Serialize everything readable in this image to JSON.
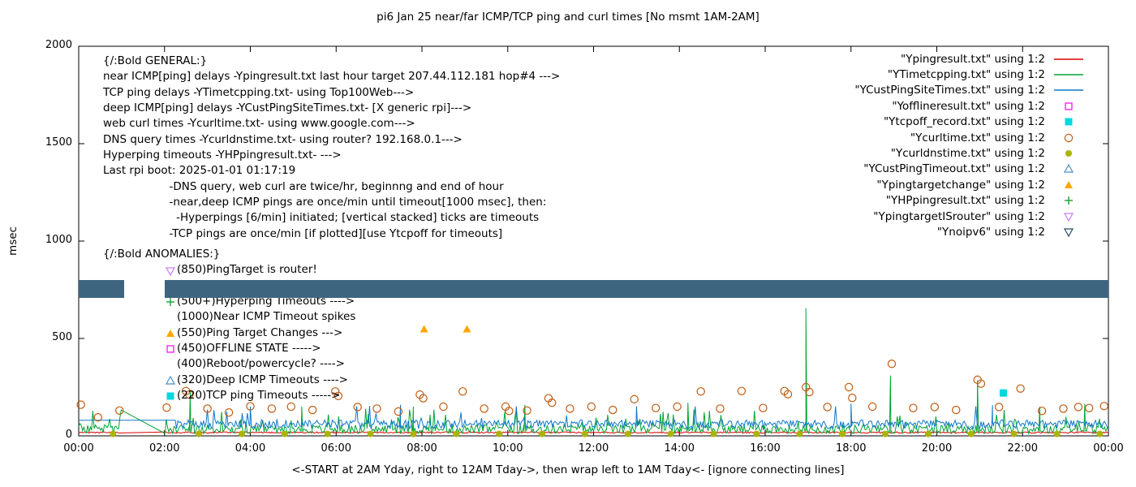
{
  "chart_data": {
    "type": "line",
    "title": "pi6 Jan 25  near/far ICMP/TCP ping and curl times [No msmt 1AM-2AM]",
    "xlabel": "<-START at 2AM Yday, right to 12AM Tday->, then wrap left to 1AM Tday<- [ignore connecting lines]",
    "ylabel": "msec",
    "ylim": [
      0,
      2000
    ],
    "xlim_hours": [
      0,
      24
    ],
    "x_ticks": [
      "00:00",
      "02:00",
      "04:00",
      "06:00",
      "08:00",
      "10:00",
      "12:00",
      "14:00",
      "16:00",
      "18:00",
      "20:00",
      "22:00",
      "00:00"
    ],
    "y_ticks": [
      0,
      500,
      1000,
      1500,
      2000
    ],
    "grid": "off",
    "legend_position": "top-right",
    "no_measurement_window": [
      1,
      2
    ],
    "series": [
      {
        "id": "Ypingresult",
        "label": "\"Ypingresult.txt\" using 1:2",
        "color": "#dd0000",
        "kind": "noisy-line",
        "base": 16,
        "jitter": 7,
        "seed": 11,
        "spikes": []
      },
      {
        "id": "YTimetcpping",
        "label": "\"YTimetcpping.txt\" using 1:2",
        "color": "#00a332",
        "kind": "noisy-line",
        "base": 25,
        "jitter": 45,
        "spike_prob": 0.1,
        "spike_amp": 100,
        "seed": 23,
        "spikes": [
          [
            2.6,
            235
          ],
          [
            5.2,
            150
          ],
          [
            7.8,
            150
          ],
          [
            10.4,
            160
          ],
          [
            14.2,
            170
          ],
          [
            16.95,
            655
          ],
          [
            18.92,
            310
          ],
          [
            20.95,
            285
          ],
          [
            22.4,
            150
          ],
          [
            23.45,
            165
          ]
        ]
      },
      {
        "id": "YCustPingSiteTimes",
        "label": "\"YCustPingSiteTimes.txt\" using 1:2",
        "color": "#1077c9",
        "kind": "noisy-line",
        "base": 50,
        "jitter": 45,
        "spike_prob": 0.06,
        "spike_amp": 80,
        "seed": 37,
        "flat_until": 2.25,
        "flat_value": 80,
        "spikes": [
          [
            4.0,
            150
          ],
          [
            7.5,
            160
          ],
          [
            13.0,
            152
          ],
          [
            18.0,
            165
          ],
          [
            21.3,
            158
          ]
        ]
      },
      {
        "id": "Yofflineresult",
        "label": "\"Yofflineresult.txt\" using 1:2",
        "color": "#ff00ff",
        "kind": "points",
        "marker": "square-open",
        "points": []
      },
      {
        "id": "Ytcpoff_record",
        "label": "\"Ytcpoff_record.txt\" using 1:2",
        "color": "#00d8e0",
        "kind": "points",
        "marker": "square-filled",
        "points": [
          [
            21.55,
            220
          ]
        ]
      },
      {
        "id": "Ycurltime",
        "label": "\"Ycurltime.txt\" using 1:2",
        "color": "#c05a10",
        "kind": "points",
        "marker": "circle-open",
        "points": [
          [
            0.05,
            160
          ],
          [
            0.45,
            95
          ],
          [
            0.95,
            130
          ],
          [
            2.05,
            145
          ],
          [
            2.5,
            230
          ],
          [
            2.58,
            212
          ],
          [
            3.0,
            140
          ],
          [
            3.5,
            120
          ],
          [
            4.0,
            152
          ],
          [
            4.5,
            140
          ],
          [
            4.95,
            150
          ],
          [
            5.45,
            133
          ],
          [
            5.98,
            228
          ],
          [
            6.05,
            205
          ],
          [
            6.5,
            148
          ],
          [
            6.95,
            140
          ],
          [
            7.45,
            125
          ],
          [
            7.95,
            212
          ],
          [
            8.03,
            193
          ],
          [
            8.5,
            150
          ],
          [
            8.95,
            228
          ],
          [
            9.45,
            140
          ],
          [
            9.95,
            150
          ],
          [
            10.03,
            128
          ],
          [
            10.45,
            130
          ],
          [
            10.95,
            193
          ],
          [
            11.03,
            170
          ],
          [
            11.45,
            140
          ],
          [
            11.95,
            150
          ],
          [
            12.45,
            133
          ],
          [
            12.95,
            188
          ],
          [
            13.45,
            143
          ],
          [
            13.95,
            150
          ],
          [
            14.5,
            228
          ],
          [
            14.95,
            140
          ],
          [
            15.45,
            230
          ],
          [
            15.95,
            143
          ],
          [
            16.45,
            230
          ],
          [
            16.53,
            214
          ],
          [
            16.95,
            250
          ],
          [
            17.03,
            225
          ],
          [
            17.45,
            148
          ],
          [
            17.95,
            250
          ],
          [
            18.03,
            195
          ],
          [
            18.5,
            150
          ],
          [
            18.95,
            370
          ],
          [
            19.45,
            143
          ],
          [
            19.95,
            148
          ],
          [
            20.45,
            133
          ],
          [
            20.95,
            288
          ],
          [
            21.03,
            268
          ],
          [
            21.45,
            148
          ],
          [
            21.95,
            243
          ],
          [
            22.45,
            128
          ],
          [
            22.95,
            140
          ],
          [
            23.3,
            148
          ],
          [
            23.55,
            143
          ],
          [
            23.9,
            153
          ]
        ]
      },
      {
        "id": "Ycurldnstime",
        "label": "\"Ycurldnstime.txt\" using 1:2",
        "color": "#aab404",
        "kind": "points",
        "marker": "circle-filled",
        "points": [
          [
            0.8,
            10
          ],
          [
            2.8,
            10
          ],
          [
            3.8,
            10
          ],
          [
            4.8,
            10
          ],
          [
            5.8,
            10
          ],
          [
            6.8,
            10
          ],
          [
            7.8,
            10
          ],
          [
            8.8,
            10
          ],
          [
            9.8,
            10
          ],
          [
            10.8,
            10
          ],
          [
            11.8,
            10
          ],
          [
            12.8,
            10
          ],
          [
            13.8,
            10
          ],
          [
            14.8,
            10
          ],
          [
            15.8,
            10
          ],
          [
            16.8,
            10
          ],
          [
            17.8,
            10
          ],
          [
            18.8,
            10
          ],
          [
            19.8,
            10
          ],
          [
            20.8,
            10
          ],
          [
            21.8,
            10
          ],
          [
            22.8,
            10
          ],
          [
            23.8,
            10
          ]
        ]
      },
      {
        "id": "YCustPingTimeout",
        "label": "\"YCustPingTimeout.txt\" using 1:2",
        "color": "#4b8fc4",
        "kind": "points",
        "marker": "triangle-up-open",
        "points": []
      },
      {
        "id": "Ypingtargetchange",
        "label": "\"Ypingtargetchange\" using 1:2",
        "color": "#ffa500",
        "kind": "points",
        "marker": "triangle-up-filled",
        "points": [
          [
            8.05,
            548
          ],
          [
            9.05,
            548
          ]
        ]
      },
      {
        "id": "YHPpingresult",
        "label": "\"YHPpingresult.txt\" using 1:2",
        "color": "#009e20",
        "kind": "points",
        "marker": "plus",
        "points": []
      },
      {
        "id": "YpingtargetISrouter",
        "label": "\"YpingtargetISrouter\" using 1:2",
        "color": "#cb7bf0",
        "kind": "points",
        "marker": "triangle-down-open",
        "points": []
      },
      {
        "id": "Ynoipv6",
        "label": "\"Ynoipv6\" using 1:2",
        "color": "#234a66",
        "kind": "band",
        "marker": "triangle-down-open",
        "band": {
          "value": 755,
          "thickness_msec": 90,
          "gaps": [
            [
              1.05,
              2.0
            ]
          ],
          "fill": "#3d6580"
        }
      }
    ],
    "annotations": {
      "general": [
        "{/:Bold GENERAL:}",
        "near ICMP[ping] delays -Ypingresult.txt last hour target 207.44.112.181 hop#4 --->",
        "TCP ping delays -YTimetcpping.txt- using Top100Web--->",
        "deep ICMP[ping] delays -YCustPingSiteTimes.txt- [X generic rpi]--->",
        "web curl times -Ycurltime.txt- using www.google.com--->",
        "DNS query times -Ycurldnstime.txt- using router? 192.168.0.1--->",
        "Hyperping timeouts -YHPpingresult.txt- --->",
        "Last rpi boot: 2025-01-01 01:17:19",
        "                   -DNS query, web curl are twice/hr, beginnng and end of hour",
        "                   -near,deep ICMP pings are once/min until timeout[1000 msec], then:",
        "                     -Hyperpings [6/min] initiated; [vertical stacked] ticks are timeouts",
        "                   -TCP pings are once/min [if plotted][use Ytcpoff for timeouts]"
      ],
      "anomalies": {
        "heading": "{/:Bold ANOMALIES:}",
        "items": [
          {
            "marker": "triangle-down-open",
            "color": "#cb7bf0",
            "text": "(850)PingTarget is router!"
          },
          {
            "marker": null,
            "color": null,
            "text": ""
          },
          {
            "marker": "plus",
            "color": "#009e20",
            "text": "(500+)Hyperping Timeouts ---->"
          },
          {
            "marker": null,
            "color": null,
            "text": "(1000)Near ICMP Timeout spikes"
          },
          {
            "marker": "triangle-up-filled",
            "color": "#ffa500",
            "text": "(550)Ping Target Changes --->"
          },
          {
            "marker": "square-open",
            "color": "#ff00ff",
            "text": "(450)OFFLINE STATE ----->"
          },
          {
            "marker": null,
            "color": null,
            "text": "(400)Reboot/powercycle? ---->"
          },
          {
            "marker": "triangle-up-open",
            "color": "#4b8fc4",
            "text": "(320)Deep ICMP Timeouts ---->"
          },
          {
            "marker": "square-filled",
            "color": "#00d8e0",
            "text": "(220)TCP ping Timeouts ----->"
          }
        ]
      }
    }
  }
}
